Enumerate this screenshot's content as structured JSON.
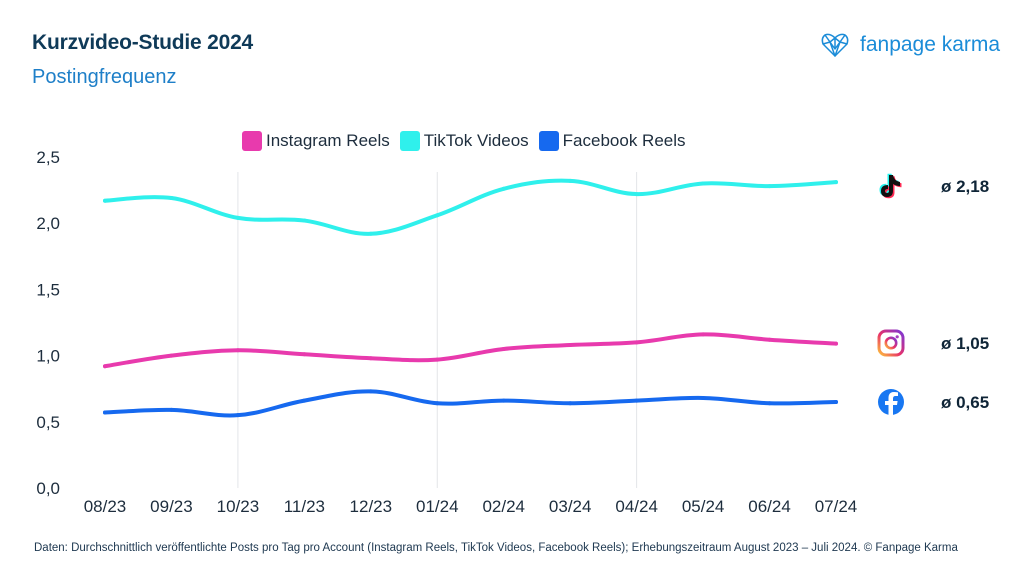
{
  "header": {
    "title": "Kurzvideo-Studie 2024",
    "subtitle": "Postingfrequenz"
  },
  "brand": {
    "logo_text": "fanpage karma",
    "logo_icon": "heart-network-icon",
    "color": "#1b8cd8"
  },
  "chart_data": {
    "type": "line",
    "title": "Kurzvideo-Studie 2024",
    "subtitle": "Postingfrequenz",
    "xlabel": "",
    "ylabel": "",
    "ylim": [
      0,
      2.5
    ],
    "yticks": [
      0,
      0.5,
      1.0,
      1.5,
      2.0,
      2.5
    ],
    "ytick_labels": [
      "0,0",
      "0,5",
      "1,0",
      "1,5",
      "2,0",
      "2,5"
    ],
    "grid": "vertical lines at 10/23, 01/24, 04/24",
    "legend_position": "top-center",
    "categories": [
      "08/23",
      "09/23",
      "10/23",
      "11/23",
      "12/23",
      "01/24",
      "02/24",
      "03/24",
      "04/24",
      "05/24",
      "06/24",
      "07/24"
    ],
    "series": [
      {
        "name": "Instagram Reels",
        "color": "#e83aad",
        "icon": "instagram-icon",
        "average_label": "ø 1,05",
        "values": [
          0.92,
          1.0,
          1.04,
          1.01,
          0.98,
          0.97,
          1.05,
          1.08,
          1.1,
          1.16,
          1.12,
          1.09
        ]
      },
      {
        "name": "TikTok Videos",
        "color": "#2ff0ec",
        "icon": "tiktok-icon",
        "average_label": "ø 2,18",
        "values": [
          2.17,
          2.19,
          2.04,
          2.02,
          1.92,
          2.06,
          2.26,
          2.32,
          2.22,
          2.3,
          2.28,
          2.31
        ]
      },
      {
        "name": "Facebook Reels",
        "color": "#1669ef",
        "icon": "facebook-icon",
        "average_label": "ø 0,65",
        "values": [
          0.57,
          0.59,
          0.55,
          0.66,
          0.73,
          0.64,
          0.66,
          0.64,
          0.66,
          0.68,
          0.64,
          0.65
        ]
      }
    ]
  },
  "footer": {
    "text": "Daten: Durchschnittlich veröffentlichte Posts pro Tag pro Account (Instagram Reels, TikTok Videos, Facebook Reels); Erhebungszeitraum August 2023 – Juli 2024. © Fanpage Karma"
  }
}
